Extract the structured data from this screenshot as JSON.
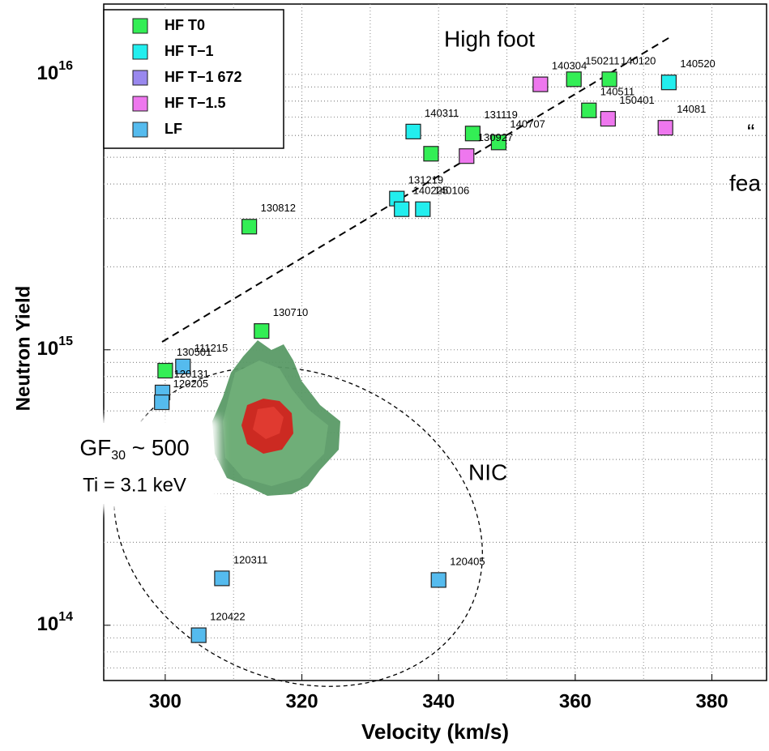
{
  "chart_data": {
    "type": "scatter",
    "xlabel": "Velocity (km/s)",
    "ylabel": "Neutron Yield",
    "xlim": [
      291,
      388
    ],
    "ylim": [
      63000000000000.0,
      1.8e+16
    ],
    "log_y": true,
    "grid": true,
    "legend": "upper left",
    "xticks": [
      300,
      320,
      340,
      360,
      380
    ],
    "yticks": [
      {
        "value": 100000000000000.0,
        "label": "10",
        "sup": "14"
      },
      {
        "value": 1000000000000000.0,
        "label": "10",
        "sup": "15"
      },
      {
        "value": 1e+16,
        "label": "10",
        "sup": "16"
      }
    ],
    "series": [
      {
        "name": "HF T0",
        "color": "#33ee55",
        "x": [
          312.3,
          314.1,
          300.0,
          338.9,
          345.0,
          348.8,
          359.8,
          365.0,
          362.0
        ],
        "values": [
          2800000000000000.0,
          1170000000000000.0,
          840000000000000.0,
          5150000000000000.0,
          6100000000000000.0,
          5660000000000000.0,
          9600000000000000.0,
          9600000000000000.0,
          7400000000000000.0
        ],
        "labels": [
          "130812",
          "130710",
          "130501",
          null,
          "131119",
          "140707",
          "150211",
          "140120",
          "140511"
        ]
      },
      {
        "name": "HF T−1",
        "color": "#22eeee",
        "x": [
          336.3,
          333.9,
          334.6,
          337.7,
          373.7
        ],
        "values": [
          6200000000000000.0,
          3540000000000000.0,
          3240000000000000.0,
          3240000000000000.0,
          9350000000000000.0
        ],
        "labels": [
          "140311",
          "131219",
          "140225",
          "140106",
          "140520"
        ]
      },
      {
        "name": "HF T−1 672",
        "color": "#9988ee",
        "x": [],
        "values": [],
        "labels": []
      },
      {
        "name": "HF T−1.5",
        "color": "#ee77ee",
        "x": [
          354.9,
          364.8,
          373.2,
          344.1
        ],
        "values": [
          9200000000000000.0,
          6900000000000000.0,
          6400000000000000.0,
          5050000000000000.0
        ],
        "labels": [
          "140304",
          "150401",
          "14081",
          "130927"
        ]
      },
      {
        "name": "LF",
        "color": "#55bbee",
        "x": [
          302.6,
          299.6,
          299.5,
          308.3,
          340.0,
          304.9
        ],
        "values": [
          870000000000000.0,
          700000000000000.0,
          645000000000000.0,
          148000000000000.0,
          146000000000000.0,
          92000000000000.0
        ],
        "labels": [
          "111215",
          "120131",
          "120205",
          "120311",
          "120405",
          "120422"
        ]
      }
    ],
    "annotations": [
      {
        "text": "High foot"
      },
      {
        "text": "NIC"
      },
      {
        "text": "GF",
        "sub": "30",
        "tail": " ~ 500"
      },
      {
        "text": "Ti = 3.1 keV"
      },
      {
        "text": "“"
      },
      {
        "text": "fea"
      }
    ]
  }
}
